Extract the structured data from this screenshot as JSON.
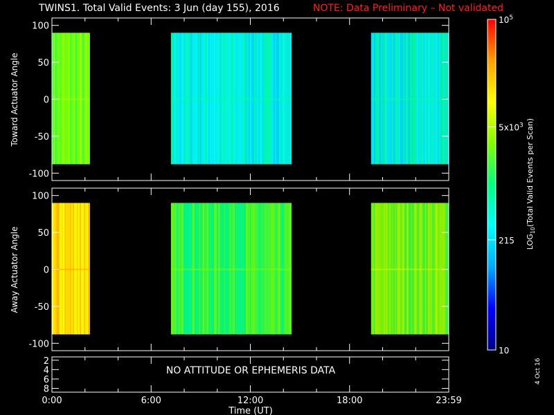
{
  "title": "TWINS1. Total Valid Events:  3 Jun (day 155), 2016",
  "note": "NOTE: Data Preliminary – Not validated",
  "date_stamp": "4 Oct 16",
  "panels": {
    "toward": {
      "ylabel": "Toward Actuator Angle",
      "yticks": [
        "100",
        "50",
        "0",
        "-50",
        "-100"
      ]
    },
    "away": {
      "ylabel": "Away Actuator Angle",
      "yticks": [
        "100",
        "50",
        "0",
        "-50",
        "-100"
      ]
    },
    "bottom": {
      "message": "NO ATTITUDE OR EPHEMERIS DATA",
      "yticks": [
        "8",
        "6",
        "4",
        "2"
      ]
    }
  },
  "xaxis": {
    "label": "Time (UT)",
    "ticks": [
      "0:00",
      "6:00",
      "12:00",
      "18:00",
      "23:59"
    ]
  },
  "colorbar": {
    "label": "LOG10(Total Valid Events per Scan)",
    "ticks": [
      "10",
      "215",
      "5x10^3",
      "10^5"
    ],
    "colors": [
      "#00008b",
      "#0000ff",
      "#00aaff",
      "#00ffff",
      "#00ff80",
      "#80ff00",
      "#ffff00",
      "#ffa000",
      "#ff0000"
    ]
  },
  "chart_data": [
    {
      "type": "heatmap",
      "title": "Toward Actuator Angle",
      "x_unit": "hours UT",
      "ylim": [
        -110,
        110
      ],
      "y_data_range": [
        -88,
        90
      ],
      "colorscale": "log10 events per scan, 10 to 1e5",
      "segments": [
        {
          "start_hour": 0.0,
          "end_hour": 2.3,
          "approx_value": 2500
        },
        {
          "start_hour": 7.2,
          "end_hour": 14.5,
          "approx_value": 350
        },
        {
          "start_hour": 19.3,
          "end_hour": 24.0,
          "approx_value": 350
        }
      ]
    },
    {
      "type": "heatmap",
      "title": "Away Actuator Angle",
      "x_unit": "hours UT",
      "ylim": [
        -110,
        110
      ],
      "y_data_range": [
        -88,
        90
      ],
      "colorscale": "log10 events per scan, 10 to 1e5",
      "segments": [
        {
          "start_hour": 0.0,
          "end_hour": 2.3,
          "approx_value": 15000
        },
        {
          "start_hour": 7.2,
          "end_hour": 14.5,
          "approx_value": 1500
        },
        {
          "start_hour": 19.3,
          "end_hour": 24.0,
          "approx_value": 3000
        }
      ]
    }
  ]
}
